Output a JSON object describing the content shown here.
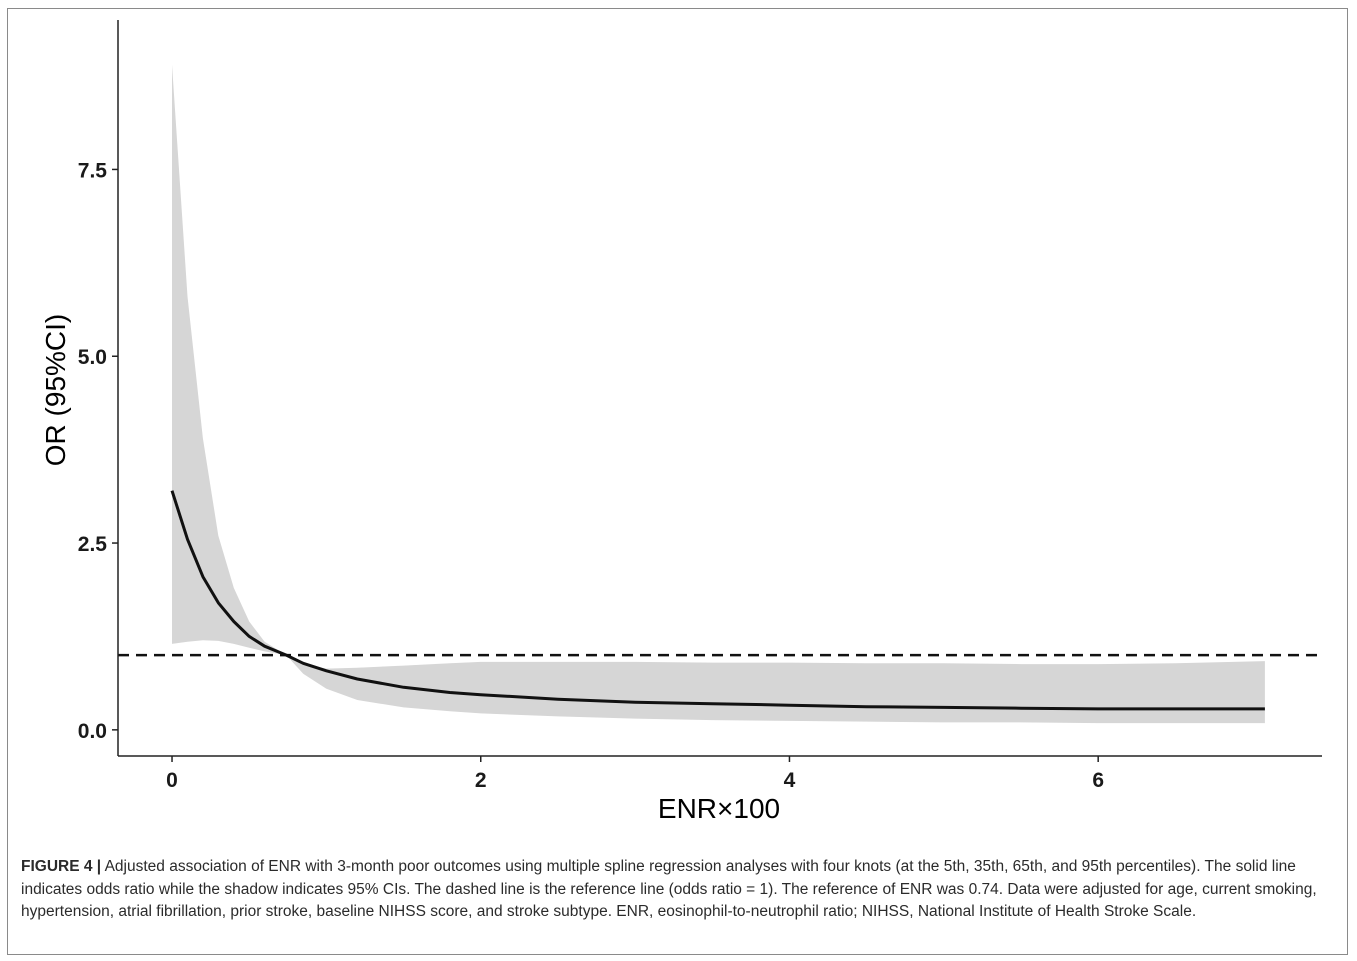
{
  "chart_data": {
    "type": "area",
    "xlabel": "ENR×100",
    "ylabel": "OR (95%CI)",
    "xlim": [
      -0.35,
      7.45
    ],
    "ylim": [
      -0.35,
      9.5
    ],
    "x_ticks": [
      0,
      2,
      4,
      6
    ],
    "x_tick_labels": [
      "0",
      "2",
      "4",
      "6"
    ],
    "y_ticks": [
      0.0,
      2.5,
      5.0,
      7.5
    ],
    "y_tick_labels": [
      "0.0",
      "2.5",
      "5.0",
      "7.5"
    ],
    "grid": false,
    "reference_line": {
      "y": 1,
      "style": "dashed"
    },
    "series": [
      {
        "x": [
          0,
          0.1,
          0.2,
          0.3,
          0.4,
          0.5,
          0.6,
          0.74,
          0.85,
          1.0,
          1.2,
          1.5,
          1.8,
          2.0,
          2.5,
          3.0,
          3.5,
          4.0,
          4.5,
          5.0,
          5.5,
          6.0,
          6.5,
          7.08
        ],
        "y": [
          3.2,
          2.55,
          2.05,
          1.7,
          1.45,
          1.25,
          1.12,
          1.0,
          0.89,
          0.79,
          0.68,
          0.57,
          0.5,
          0.47,
          0.41,
          0.37,
          0.35,
          0.33,
          0.31,
          0.3,
          0.29,
          0.28,
          0.28,
          0.28
        ],
        "ci_lower": [
          1.15,
          1.18,
          1.2,
          1.19,
          1.15,
          1.1,
          1.05,
          1.0,
          0.75,
          0.55,
          0.4,
          0.3,
          0.25,
          0.22,
          0.18,
          0.15,
          0.13,
          0.12,
          0.11,
          0.1,
          0.1,
          0.09,
          0.09,
          0.09
        ],
        "ci_upper": [
          8.9,
          5.8,
          3.9,
          2.6,
          1.9,
          1.45,
          1.18,
          1.0,
          0.88,
          0.82,
          0.83,
          0.86,
          0.89,
          0.91,
          0.91,
          0.91,
          0.9,
          0.9,
          0.89,
          0.89,
          0.88,
          0.88,
          0.89,
          0.92
        ],
        "line_color": "#111111",
        "band_color": "#d6d6d6"
      }
    ]
  },
  "caption": {
    "label": "FIGURE 4 |",
    "text": "Adjusted association of ENR with 3-month poor outcomes using multiple spline regression analyses with four knots (at the 5th, 35th, 65th, and 95th percentiles). The solid line indicates odds ratio while the shadow indicates 95% CIs. The dashed line is the reference line (odds ratio = 1). The reference of ENR was 0.74. Data were adjusted for age, current smoking, hypertension, atrial fibrillation, prior stroke, baseline NIHSS score, and stroke subtype. ENR, eosinophil-to-neutrophil ratio; NIHSS, National Institute of Health Stroke Scale."
  }
}
